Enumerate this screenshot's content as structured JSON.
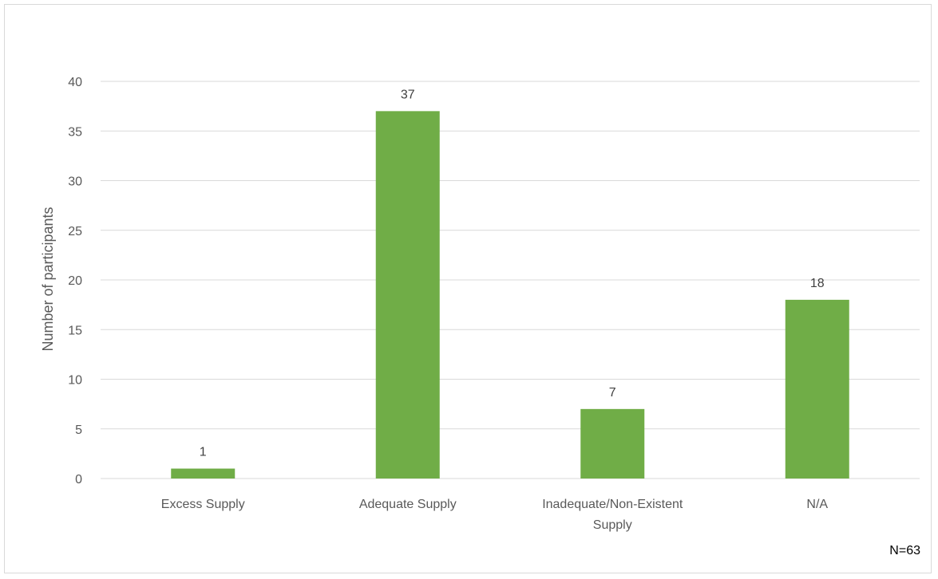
{
  "chart_data": {
    "type": "bar",
    "categories": [
      "Excess Supply",
      "Adequate Supply",
      "Inadequate/Non-Existent Supply",
      "N/A"
    ],
    "category_lines": [
      [
        "Excess Supply"
      ],
      [
        "Adequate Supply"
      ],
      [
        "Inadequate/Non-Existent",
        "Supply"
      ],
      [
        "N/A"
      ]
    ],
    "values": [
      1,
      37,
      7,
      18
    ],
    "title": "",
    "xlabel": "",
    "ylabel": "Number of participants",
    "ylim": [
      0,
      40
    ],
    "yticks": [
      0,
      5,
      10,
      15,
      20,
      25,
      30,
      35,
      40
    ],
    "grid": true,
    "legend": "none",
    "bar_color": "#70ad47",
    "grid_color": "#d9d9d9",
    "note": "N=63"
  }
}
